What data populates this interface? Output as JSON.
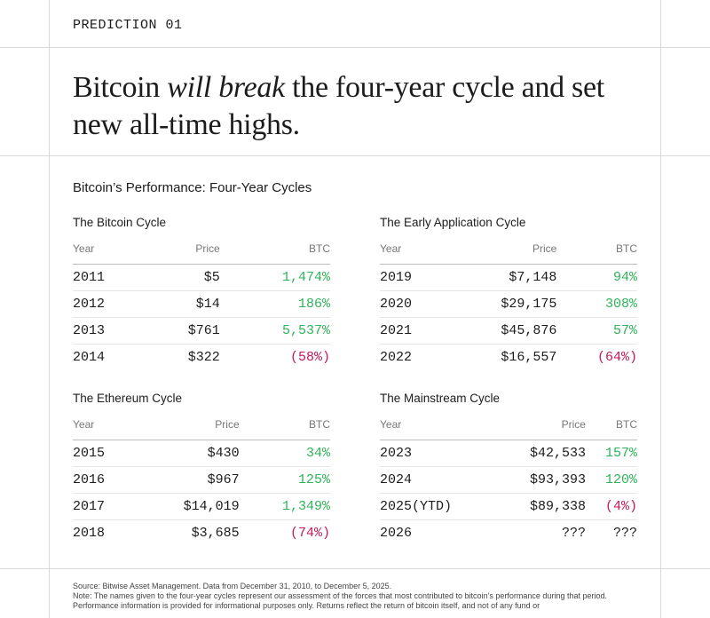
{
  "header": {
    "label": "PREDICTION 01"
  },
  "headline": {
    "before": "Bitcoin",
    "emphasis": "will break",
    "after": "the four-year cycle and set new all-time highs."
  },
  "section": {
    "title": "Bitcoin’s Performance: Four-Year Cycles"
  },
  "tables": [
    {
      "title": "The Bitcoin Cycle",
      "columns": [
        "Year",
        "Price",
        "BTC"
      ],
      "rows": [
        [
          "2011",
          "$5",
          "1,474%"
        ],
        [
          "2012",
          "$14",
          "186%"
        ],
        [
          "2013",
          "$761",
          "5,537%"
        ],
        [
          "2014",
          "$322",
          "(58%)"
        ]
      ]
    },
    {
      "title": "The Early Application Cycle",
      "columns": [
        "Year",
        "Price",
        "BTC"
      ],
      "rows": [
        [
          "2019",
          "$7,148",
          "94%"
        ],
        [
          "2020",
          "$29,175",
          "308%"
        ],
        [
          "2021",
          "$45,876",
          "57%"
        ],
        [
          "2022",
          "$16,557",
          "(64%)"
        ]
      ]
    },
    {
      "title": "The Ethereum Cycle",
      "columns": [
        "Year",
        "Price",
        "BTC"
      ],
      "rows": [
        [
          "2015",
          "$430",
          "34%"
        ],
        [
          "2016",
          "$967",
          "125%"
        ],
        [
          "2017",
          "$14,019",
          "1,349%"
        ],
        [
          "2018",
          "$3,685",
          "(74%)"
        ]
      ]
    },
    {
      "title": "The Mainstream Cycle",
      "columns": [
        "Year",
        "Price",
        "BTC"
      ],
      "rows": [
        [
          "2023",
          "$42,533",
          "157%"
        ],
        [
          "2024",
          "$93,393",
          "120%"
        ],
        [
          "2025(YTD)",
          "$89,338",
          "(4%)"
        ],
        [
          "2026",
          "???",
          "???"
        ]
      ]
    }
  ],
  "footer": {
    "source": "Source: Bitwise Asset Management. Data from December 31, 2010, to December 5, 2025.",
    "note": "Note: The names given to the four-year cycles represent our assessment of the forces that most contributed to bitcoin’s performance during that period. Performance information is provided for informational purposes only. Returns reflect the return of bitcoin itself, and not of any fund or"
  }
}
